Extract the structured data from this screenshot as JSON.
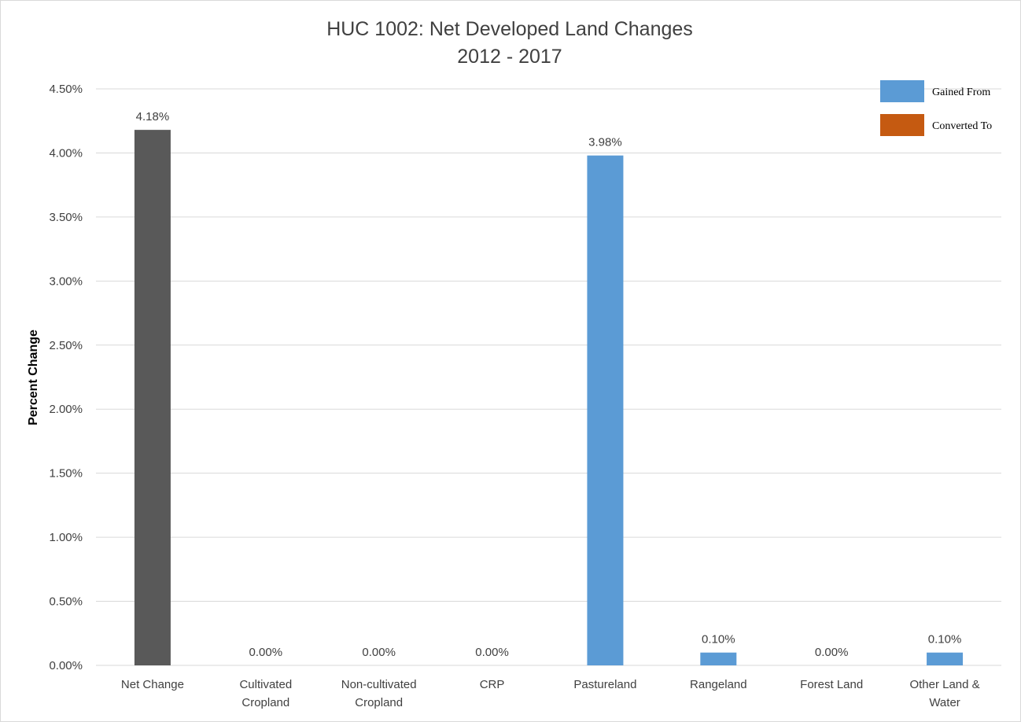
{
  "chart_data": {
    "type": "bar",
    "title": "HUC 1002: Net Developed Land Changes",
    "subtitle": "2012 - 2017",
    "ylabel": "Percent Change",
    "xlabel": "",
    "ylim": [
      0,
      4.5
    ],
    "ytick_step": 0.5,
    "ytick_labels": [
      "0.00%",
      "0.50%",
      "1.00%",
      "1.50%",
      "2.00%",
      "2.50%",
      "3.00%",
      "3.50%",
      "4.00%",
      "4.50%"
    ],
    "grid": true,
    "legend_position": "top-right",
    "categories": [
      [
        "Net Change"
      ],
      [
        "Cultivated",
        "Cropland"
      ],
      [
        "Non-cultivated",
        "Cropland"
      ],
      [
        "CRP"
      ],
      [
        "Pastureland"
      ],
      [
        "Rangeland"
      ],
      [
        "Forest Land"
      ],
      [
        "Other Land &",
        "Water"
      ]
    ],
    "values": [
      4.18,
      0.0,
      0.0,
      0.0,
      3.98,
      0.1,
      0.0,
      0.1
    ],
    "value_labels": [
      "4.18%",
      "0.00%",
      "0.00%",
      "0.00%",
      "3.98%",
      "0.10%",
      "0.00%",
      "0.10%"
    ],
    "bar_colors": [
      "#595959",
      "#5b9bd5",
      "#5b9bd5",
      "#5b9bd5",
      "#5b9bd5",
      "#5b9bd5",
      "#5b9bd5",
      "#5b9bd5"
    ],
    "legend": [
      {
        "label": "Gained From",
        "color": "#5b9bd5"
      },
      {
        "label": "Converted To",
        "color": "#c55a11"
      }
    ]
  }
}
